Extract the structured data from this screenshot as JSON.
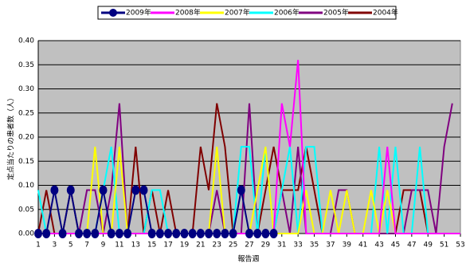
{
  "chart_data": {
    "type": "line",
    "x_label": "報告週",
    "y_label": "定点当たりの患者数（人）",
    "x": [
      1,
      2,
      3,
      4,
      5,
      6,
      7,
      8,
      9,
      10,
      11,
      12,
      13,
      14,
      15,
      16,
      17,
      18,
      19,
      20,
      21,
      22,
      23,
      24,
      25,
      26,
      27,
      28,
      29,
      30,
      31,
      32,
      33,
      34,
      35,
      36,
      37,
      38,
      39,
      40,
      41,
      42,
      43,
      44,
      45,
      46,
      47,
      48,
      49,
      50,
      51,
      52,
      53
    ],
    "xlim": [
      1,
      53
    ],
    "xticks": [
      1,
      3,
      5,
      7,
      9,
      11,
      13,
      15,
      17,
      19,
      21,
      23,
      25,
      27,
      29,
      31,
      33,
      35,
      37,
      39,
      41,
      43,
      45,
      47,
      49,
      51,
      53
    ],
    "ylim": [
      0,
      0.4
    ],
    "yticks": [
      {
        "value": 0,
        "label": "0.00"
      },
      {
        "value": 0.05,
        "label": "0.05"
      },
      {
        "value": 0.1,
        "label": "0.10"
      },
      {
        "value": 0.15,
        "label": "0.15"
      },
      {
        "value": 0.2,
        "label": "0.20"
      },
      {
        "value": 0.25,
        "label": "0.25"
      },
      {
        "value": 0.3,
        "label": "0.30"
      },
      {
        "value": 0.35,
        "label": "0.35"
      },
      {
        "value": 0.4,
        "label": "0.40"
      }
    ],
    "grid": true,
    "plot_background": "#c0c0c0",
    "legend": "top",
    "series": [
      {
        "name": "2009年",
        "color": "#000080",
        "marker": "circle",
        "values": [
          0,
          0,
          0.09,
          0,
          0.09,
          0,
          0,
          0,
          0.09,
          0,
          0,
          0,
          0.09,
          0.09,
          0,
          0,
          0,
          0,
          0,
          0,
          0,
          0,
          0,
          0,
          0,
          0.09,
          0,
          0,
          0,
          0,
          null,
          null,
          null,
          null,
          null,
          null,
          null,
          null,
          null,
          null,
          null,
          null,
          null,
          null,
          null,
          null,
          null,
          null,
          null,
          null,
          null,
          null,
          null
        ]
      },
      {
        "name": "2008年",
        "color": "#ff00ff",
        "values": [
          0,
          0,
          0,
          0,
          0,
          0,
          0,
          0,
          0,
          0,
          0,
          0,
          0,
          0,
          0,
          0,
          0,
          0,
          0,
          0,
          0,
          0,
          0,
          0,
          0,
          0,
          0,
          0,
          0,
          0,
          0.27,
          0.18,
          0.36,
          0,
          0,
          0,
          0,
          0,
          0,
          0,
          0,
          0,
          0,
          0.18,
          0,
          0,
          0,
          0,
          0,
          0,
          0,
          0,
          0
        ]
      },
      {
        "name": "2007年",
        "color": "#ffff00",
        "values": [
          0,
          0,
          0,
          0,
          0,
          0,
          0,
          0.18,
          0,
          0,
          0.18,
          0,
          0,
          0,
          0,
          0,
          0,
          0,
          0,
          0,
          0,
          0,
          0.18,
          0,
          0,
          0,
          0,
          0.09,
          0.18,
          0,
          0,
          0,
          0,
          0.09,
          0,
          0,
          0.09,
          0,
          0.09,
          0,
          0,
          0.09,
          0,
          0.09,
          0,
          0,
          0,
          0,
          0,
          0,
          0,
          0,
          0
        ]
      },
      {
        "name": "2006年",
        "color": "#00ffff",
        "values": [
          0.09,
          0,
          0,
          0,
          0,
          0,
          0,
          0,
          0.09,
          0.18,
          0,
          0,
          0,
          0,
          0.09,
          0.09,
          0,
          0,
          0,
          0,
          0,
          0,
          0,
          0,
          0,
          0.18,
          0.18,
          0,
          0.18,
          0,
          0.09,
          0.18,
          0,
          0.18,
          0.18,
          0,
          0,
          0,
          0,
          0,
          0,
          0,
          0.18,
          0,
          0.18,
          0,
          0,
          0.18,
          0,
          0,
          0,
          0,
          0
        ]
      },
      {
        "name": "2005年",
        "color": "#800080",
        "values": [
          0,
          0,
          0,
          0,
          0,
          0,
          0.09,
          0.09,
          0,
          0.09,
          0.27,
          0,
          0,
          0,
          0,
          0,
          0,
          0,
          0,
          0,
          0,
          0,
          0.09,
          0,
          0,
          0,
          0.27,
          0,
          0,
          0,
          0.09,
          0,
          0.18,
          0,
          0,
          0,
          0,
          0.09,
          0.09,
          0,
          0,
          0,
          0,
          0,
          0,
          0,
          0.09,
          0.09,
          0.09,
          0,
          0.18,
          0.27,
          null
        ]
      },
      {
        "name": "2004年",
        "color": "#800000",
        "values": [
          0,
          0.09,
          0,
          0,
          0.09,
          0,
          0,
          0,
          0,
          0,
          0,
          0,
          0.18,
          0,
          0.09,
          0,
          0.09,
          0,
          0,
          0,
          0.18,
          0.09,
          0.27,
          0.18,
          0,
          0,
          0,
          0,
          0.09,
          0.18,
          0.09,
          0.09,
          0.09,
          0.18,
          0.09,
          0,
          0,
          0,
          0,
          0,
          0,
          0,
          0,
          0,
          0,
          0.09,
          0.09,
          0.09,
          0,
          0,
          0,
          0,
          0
        ]
      }
    ]
  }
}
